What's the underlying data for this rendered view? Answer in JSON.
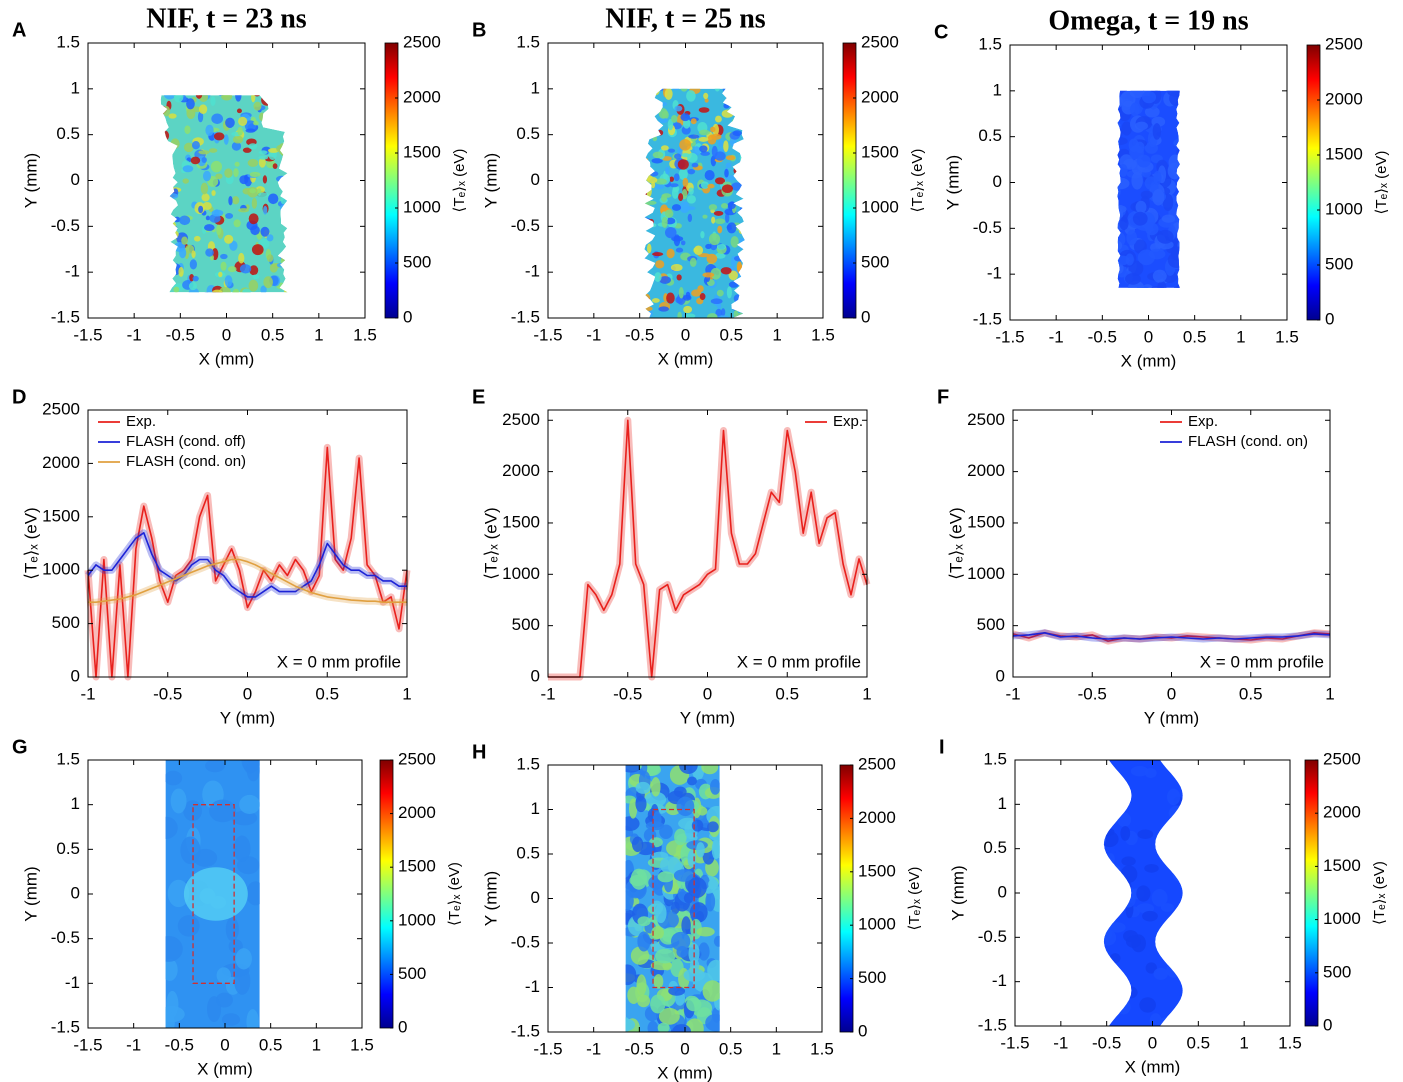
{
  "chart_data": [
    {
      "panel": "A",
      "type": "heatmap",
      "title": "NIF, t = 23 ns",
      "xlabel": "X (mm)",
      "ylabel": "Y (mm)",
      "xlim": [
        -1.5,
        1.5
      ],
      "ylim": [
        -1.5,
        1.5
      ],
      "xticks": [
        -1.5,
        -1,
        -0.5,
        0,
        0.5,
        1,
        1.5
      ],
      "yticks": [
        -1.5,
        -1,
        -0.5,
        0,
        0.5,
        1,
        1.5
      ],
      "colormap": "jet",
      "colorbar": {
        "label": "⟨Tₑ⟩ₓ (eV)",
        "lim": [
          0,
          2500
        ],
        "ticks": [
          0,
          500,
          1000,
          1500,
          2000,
          2500
        ]
      }
    },
    {
      "panel": "B",
      "type": "heatmap",
      "title": "NIF, t = 25 ns",
      "xlabel": "X (mm)",
      "ylabel": "Y (mm)",
      "xlim": [
        -1.5,
        1.5
      ],
      "ylim": [
        -1.5,
        1.5
      ],
      "xticks": [
        -1.5,
        -1,
        -0.5,
        0,
        0.5,
        1,
        1.5
      ],
      "yticks": [
        -1.5,
        -1,
        -0.5,
        0,
        0.5,
        1,
        1.5
      ],
      "colormap": "jet",
      "colorbar": {
        "label": "⟨Tₑ⟩ₓ (eV)",
        "lim": [
          0,
          2500
        ],
        "ticks": [
          0,
          500,
          1000,
          1500,
          2000,
          2500
        ]
      }
    },
    {
      "panel": "C",
      "type": "heatmap",
      "title": "Omega, t = 19 ns",
      "xlabel": "X (mm)",
      "ylabel": "Y (mm)",
      "xlim": [
        -1.5,
        1.5
      ],
      "ylim": [
        -1.5,
        1.5
      ],
      "xticks": [
        -1.5,
        -1,
        -0.5,
        0,
        0.5,
        1,
        1.5
      ],
      "yticks": [
        -1.5,
        -1,
        -0.5,
        0,
        0.5,
        1,
        1.5
      ],
      "colormap": "jet",
      "colorbar": {
        "label": "⟨Tₑ⟩ₓ (eV)",
        "lim": [
          0,
          2500
        ],
        "ticks": [
          0,
          500,
          1000,
          1500,
          2000,
          2500
        ]
      }
    },
    {
      "panel": "D",
      "type": "line",
      "xlabel": "Y (mm)",
      "ylabel": "⟨Tₑ⟩ₓ (eV)",
      "annotation": "X = 0 mm profile",
      "legend": "upper left",
      "xlim": [
        -1,
        1
      ],
      "ylim": [
        0,
        2500
      ],
      "xticks": [
        -1,
        -0.5,
        0,
        0.5,
        1
      ],
      "yticks": [
        0,
        500,
        1000,
        1500,
        2000,
        2500
      ],
      "x": [
        -1,
        -0.95,
        -0.9,
        -0.85,
        -0.8,
        -0.75,
        -0.7,
        -0.65,
        -0.6,
        -0.55,
        -0.5,
        -0.45,
        -0.4,
        -0.35,
        -0.3,
        -0.25,
        -0.2,
        -0.15,
        -0.1,
        -0.05,
        0,
        0.05,
        0.1,
        0.15,
        0.2,
        0.25,
        0.3,
        0.35,
        0.4,
        0.45,
        0.5,
        0.55,
        0.6,
        0.65,
        0.7,
        0.75,
        0.8,
        0.85,
        0.9,
        0.95,
        1
      ],
      "series": [
        {
          "name": "Exp.",
          "color": "#e8201c",
          "values": [
            1000,
            0,
            1100,
            0,
            1050,
            0,
            1200,
            1600,
            1300,
            900,
            700,
            950,
            1000,
            1100,
            1500,
            1700,
            900,
            1050,
            1200,
            1000,
            650,
            800,
            1000,
            900,
            1050,
            950,
            1100,
            1000,
            800,
            950,
            2150,
            1100,
            1000,
            1300,
            2050,
            1050,
            950,
            700,
            750,
            450,
            1000
          ]
        },
        {
          "name": "FLASH (cond. off)",
          "color": "#1c23d6",
          "values": [
            950,
            1050,
            1000,
            1000,
            1100,
            1200,
            1300,
            1350,
            1150,
            1000,
            950,
            900,
            950,
            1050,
            1100,
            1100,
            1000,
            950,
            850,
            800,
            750,
            750,
            800,
            850,
            800,
            800,
            800,
            850,
            900,
            1050,
            1250,
            1150,
            1050,
            1000,
            1000,
            950,
            950,
            900,
            900,
            850,
            850
          ]
        },
        {
          "name": "FLASH (cond. on)",
          "color": "#e0a040",
          "values": [
            700,
            700,
            710,
            720,
            730,
            750,
            770,
            800,
            830,
            860,
            890,
            920,
            950,
            980,
            1010,
            1040,
            1060,
            1080,
            1100,
            1100,
            1080,
            1050,
            1010,
            970,
            930,
            890,
            850,
            820,
            790,
            770,
            750,
            740,
            730,
            720,
            715,
            710,
            710,
            700,
            700,
            700,
            700
          ]
        }
      ]
    },
    {
      "panel": "E",
      "type": "line",
      "xlabel": "Y (mm)",
      "ylabel": "⟨Tₑ⟩ₓ (eV)",
      "annotation": "X = 0 mm profile",
      "legend": "upper right",
      "xlim": [
        -1,
        1
      ],
      "ylim": [
        0,
        2600
      ],
      "xticks": [
        -1,
        -0.5,
        0,
        0.5,
        1
      ],
      "yticks": [
        0,
        500,
        1000,
        1500,
        2000,
        2500
      ],
      "x": [
        -1,
        -0.95,
        -0.9,
        -0.85,
        -0.8,
        -0.75,
        -0.7,
        -0.65,
        -0.6,
        -0.55,
        -0.5,
        -0.45,
        -0.4,
        -0.35,
        -0.3,
        -0.25,
        -0.2,
        -0.15,
        -0.1,
        -0.05,
        0,
        0.05,
        0.1,
        0.15,
        0.2,
        0.25,
        0.3,
        0.35,
        0.4,
        0.45,
        0.5,
        0.55,
        0.6,
        0.65,
        0.7,
        0.75,
        0.8,
        0.85,
        0.9,
        0.95,
        1
      ],
      "series": [
        {
          "name": "Exp.",
          "color": "#e8201c",
          "values": [
            0,
            0,
            0,
            0,
            0,
            900,
            800,
            650,
            800,
            1100,
            2500,
            1100,
            900,
            0,
            850,
            900,
            650,
            800,
            850,
            900,
            1000,
            1050,
            2400,
            1400,
            1100,
            1100,
            1200,
            1500,
            1800,
            1700,
            2400,
            2000,
            1400,
            1800,
            1300,
            1550,
            1600,
            1100,
            800,
            1150,
            900
          ]
        }
      ]
    },
    {
      "panel": "F",
      "type": "line",
      "xlabel": "Y (mm)",
      "ylabel": "⟨Tₑ⟩ₓ (eV)",
      "annotation": "X = 0 mm profile",
      "legend": "upper right",
      "xlim": [
        -1,
        1
      ],
      "ylim": [
        0,
        2600
      ],
      "xticks": [
        -1,
        -0.5,
        0,
        0.5,
        1
      ],
      "yticks": [
        0,
        500,
        1000,
        1500,
        2000,
        2500
      ],
      "x": [
        -1,
        -0.9,
        -0.8,
        -0.7,
        -0.6,
        -0.5,
        -0.4,
        -0.3,
        -0.2,
        -0.1,
        0,
        0.1,
        0.2,
        0.3,
        0.4,
        0.5,
        0.6,
        0.7,
        0.8,
        0.9,
        1
      ],
      "series": [
        {
          "name": "Exp.",
          "color": "#e8201c",
          "values": [
            420,
            380,
            430,
            400,
            390,
            410,
            350,
            380,
            370,
            390,
            380,
            400,
            390,
            380,
            370,
            360,
            380,
            370,
            400,
            430,
            420
          ]
        },
        {
          "name": "FLASH (cond. on)",
          "color": "#1c23d6",
          "values": [
            400,
            410,
            430,
            390,
            400,
            380,
            370,
            380,
            370,
            380,
            390,
            380,
            370,
            380,
            370,
            380,
            390,
            390,
            400,
            420,
            410
          ]
        }
      ]
    },
    {
      "panel": "G",
      "type": "heatmap",
      "xlabel": "X (mm)",
      "ylabel": "Y (mm)",
      "xlim": [
        -1.5,
        1.5
      ],
      "ylim": [
        -1.5,
        1.5
      ],
      "xticks": [
        -1.5,
        -1,
        -0.5,
        0,
        0.5,
        1,
        1.5
      ],
      "yticks": [
        -1.5,
        -1,
        -0.5,
        0,
        0.5,
        1,
        1.5
      ],
      "colormap": "jet",
      "colorbar": {
        "label": "⟨Tₑ⟩ₓ (eV)",
        "lim": [
          0,
          2500
        ],
        "ticks": [
          0,
          500,
          1000,
          1500,
          2000,
          2500
        ]
      }
    },
    {
      "panel": "H",
      "type": "heatmap",
      "xlabel": "X (mm)",
      "ylabel": "Y (mm)",
      "xlim": [
        -1.5,
        1.5
      ],
      "ylim": [
        -1.5,
        1.5
      ],
      "xticks": [
        -1.5,
        -1,
        -0.5,
        0,
        0.5,
        1,
        1.5
      ],
      "yticks": [
        -1.5,
        -1,
        -0.5,
        0,
        0.5,
        1,
        1.5
      ],
      "colormap": "jet",
      "colorbar": {
        "label": "⟨Tₑ⟩ₓ (eV)",
        "lim": [
          0,
          2500
        ],
        "ticks": [
          0,
          500,
          1000,
          1500,
          2000,
          2500
        ]
      }
    },
    {
      "panel": "I",
      "type": "heatmap",
      "xlabel": "X (mm)",
      "ylabel": "Y (mm)",
      "xlim": [
        -1.5,
        1.5
      ],
      "ylim": [
        -1.5,
        1.5
      ],
      "xticks": [
        -1.5,
        -1,
        -0.5,
        0,
        0.5,
        1,
        1.5
      ],
      "yticks": [
        -1.5,
        -1,
        -0.5,
        0,
        0.5,
        1,
        1.5
      ],
      "colormap": "jet",
      "colorbar": {
        "label": "⟨Tₑ⟩ₓ (eV)",
        "lim": [
          0,
          2500
        ],
        "ticks": [
          0,
          500,
          1000,
          1500,
          2000,
          2500
        ]
      }
    }
  ]
}
